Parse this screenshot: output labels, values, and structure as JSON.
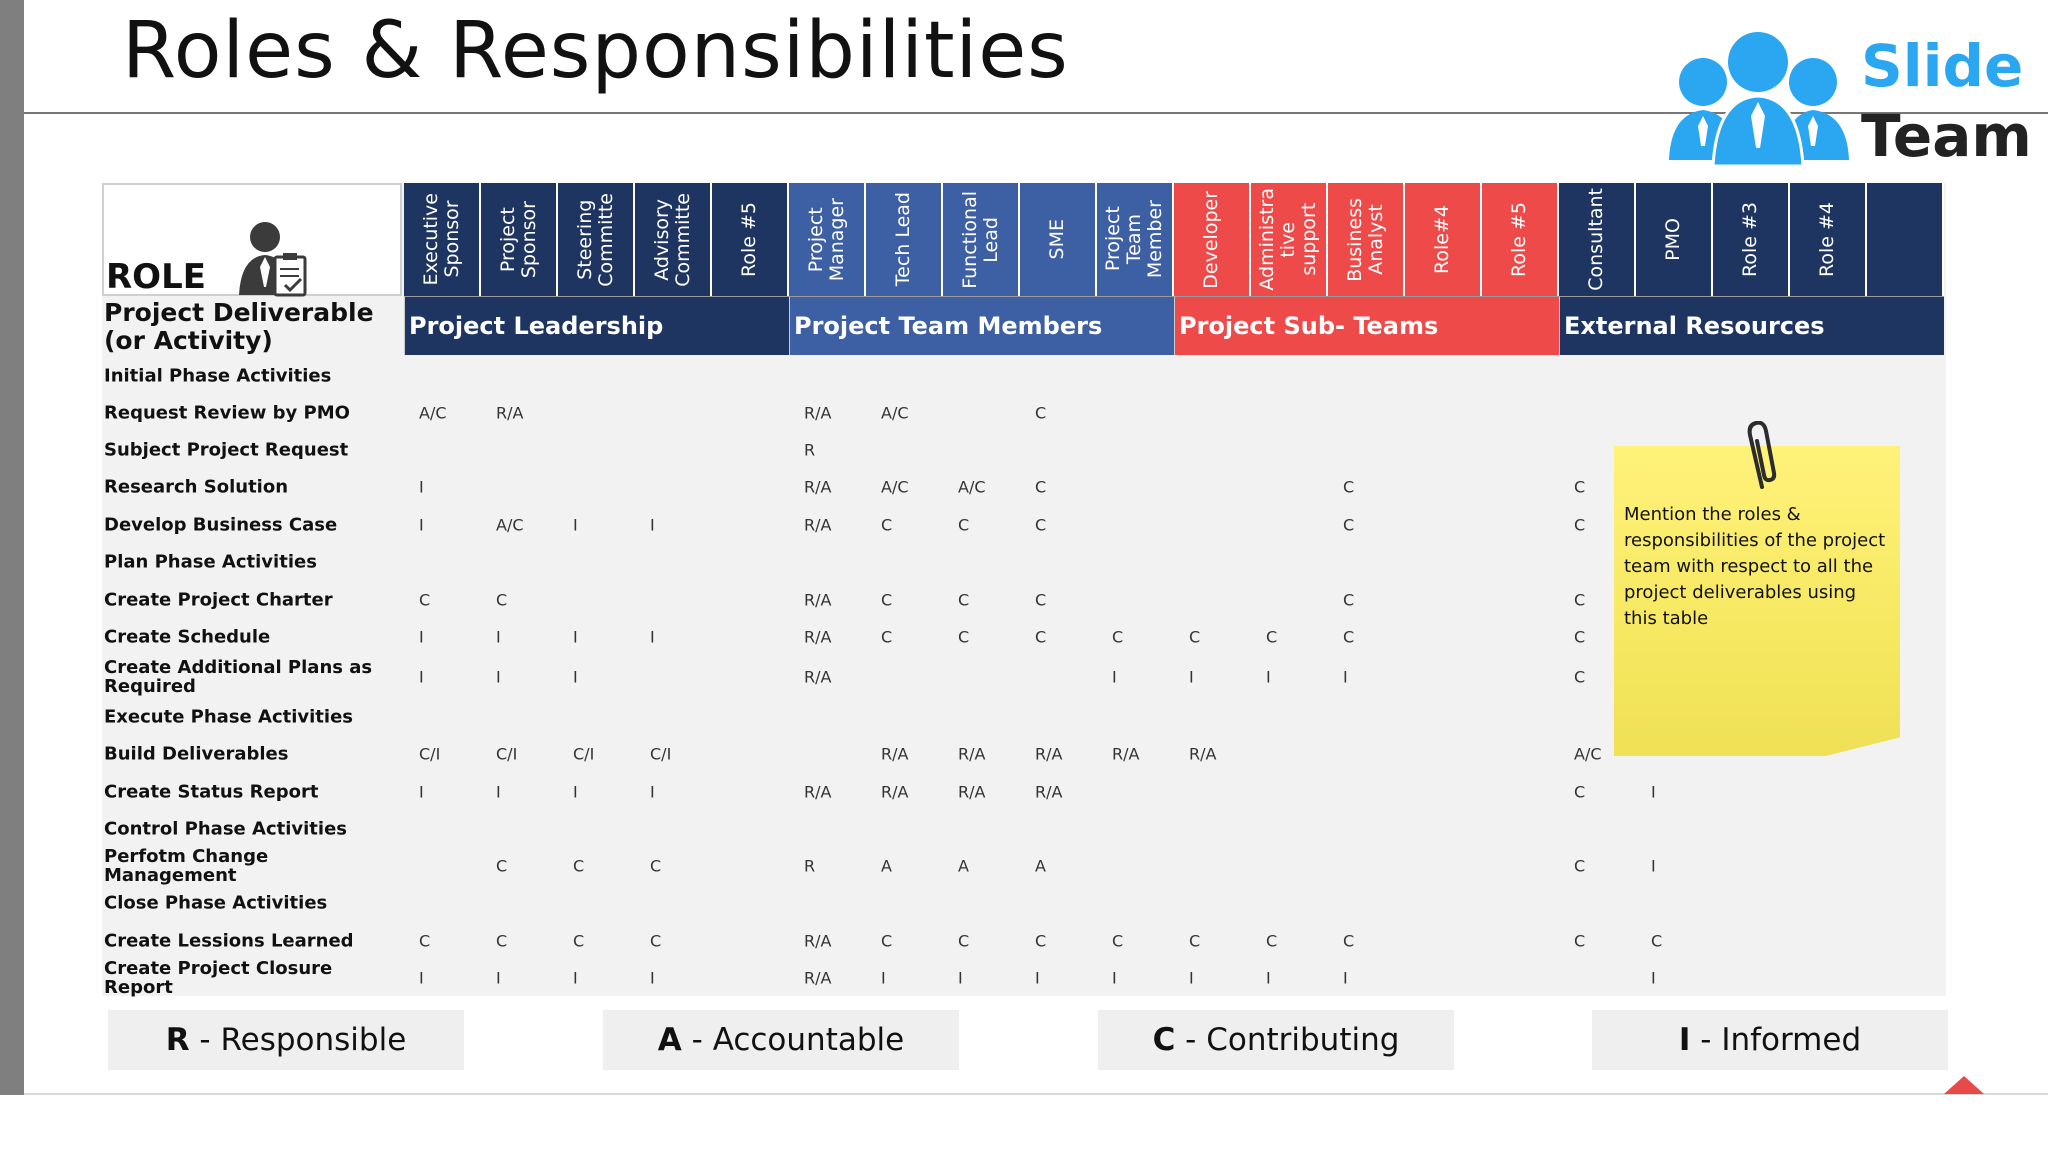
{
  "slide": {
    "title": "Roles & Responsibilities",
    "logo": {
      "line1": "Slide",
      "line2": "Team",
      "icon": "people-group-icon"
    },
    "role_label": "ROLE",
    "role_icon": "businessman-clipboard-icon",
    "deliverable_header": "Project Deliverable (or Activity)"
  },
  "columns": [
    {
      "label": "Executive\nSponsor",
      "color": "#1f3561"
    },
    {
      "label": "Project\nSponsor",
      "color": "#1f3561"
    },
    {
      "label": "Steering\nCommitte",
      "color": "#1f3561"
    },
    {
      "label": "Advisory\nCommitte",
      "color": "#1f3561"
    },
    {
      "label": "Role #5",
      "color": "#1f3561"
    },
    {
      "label": "Project\nManager",
      "color": "#3d5fa3"
    },
    {
      "label": "Tech Lead",
      "color": "#3d5fa3"
    },
    {
      "label": "Functional\nLead",
      "color": "#3d5fa3"
    },
    {
      "label": "SME",
      "color": "#3d5fa3"
    },
    {
      "label": "Project\nTeam\nMember",
      "color": "#3d5fa3"
    },
    {
      "label": "Developer",
      "color": "#ef4a4a"
    },
    {
      "label": "Administra\ntive\nsupport",
      "color": "#ef4a4a"
    },
    {
      "label": "Business\nAnalyst",
      "color": "#ef4a4a"
    },
    {
      "label": "Role#4",
      "color": "#ef4a4a"
    },
    {
      "label": "Role #5",
      "color": "#ef4a4a"
    },
    {
      "label": "Consultant",
      "color": "#1f3561"
    },
    {
      "label": "PMO",
      "color": "#1f3561"
    },
    {
      "label": "Role #3",
      "color": "#1f3561"
    },
    {
      "label": "Role #4",
      "color": "#1f3561"
    },
    {
      "label": "",
      "color": "#1f3561"
    }
  ],
  "groups": [
    {
      "label": "Project Leadership",
      "color": "#1f3561"
    },
    {
      "label": "Project Team Members",
      "color": "#3d5fa3"
    },
    {
      "label": "Project Sub- Teams",
      "color": "#ef4a4a"
    },
    {
      "label": "External Resources",
      "color": "#1f3561"
    }
  ],
  "rows": [
    {
      "label": "Initial Phase Activities",
      "cells": []
    },
    {
      "label": "Request Review by PMO",
      "cells": [
        [
          0,
          "A/C"
        ],
        [
          1,
          "R/A"
        ],
        [
          5,
          "R/A"
        ],
        [
          6,
          "A/C"
        ],
        [
          8,
          "C"
        ]
      ]
    },
    {
      "label": "Subject Project Request",
      "cells": [
        [
          5,
          "R"
        ]
      ]
    },
    {
      "label": "Research Solution",
      "cells": [
        [
          0,
          "I"
        ],
        [
          5,
          "R/A"
        ],
        [
          6,
          "A/C"
        ],
        [
          7,
          "A/C"
        ],
        [
          8,
          "C"
        ],
        [
          12,
          "C"
        ],
        [
          15,
          "C"
        ]
      ]
    },
    {
      "label": "Develop Business Case",
      "cells": [
        [
          0,
          "I"
        ],
        [
          1,
          "A/C"
        ],
        [
          2,
          "I"
        ],
        [
          3,
          "I"
        ],
        [
          5,
          "R/A"
        ],
        [
          6,
          "C"
        ],
        [
          7,
          "C"
        ],
        [
          8,
          "C"
        ],
        [
          12,
          "C"
        ],
        [
          15,
          "C"
        ]
      ]
    },
    {
      "label": "Plan Phase Activities",
      "cells": []
    },
    {
      "label": "Create Project Charter",
      "cells": [
        [
          0,
          "C"
        ],
        [
          1,
          "C"
        ],
        [
          5,
          "R/A"
        ],
        [
          6,
          "C"
        ],
        [
          7,
          "C"
        ],
        [
          8,
          "C"
        ],
        [
          12,
          "C"
        ],
        [
          15,
          "C"
        ]
      ]
    },
    {
      "label": "Create Schedule",
      "cells": [
        [
          0,
          "I"
        ],
        [
          1,
          "I"
        ],
        [
          2,
          "I"
        ],
        [
          3,
          "I"
        ],
        [
          5,
          "R/A"
        ],
        [
          6,
          "C"
        ],
        [
          7,
          "C"
        ],
        [
          8,
          "C"
        ],
        [
          9,
          "C"
        ],
        [
          10,
          "C"
        ],
        [
          11,
          "C"
        ],
        [
          12,
          "C"
        ],
        [
          15,
          "C"
        ]
      ]
    },
    {
      "label": "Create Additional Plans as Required",
      "cells": [
        [
          0,
          "I"
        ],
        [
          1,
          "I"
        ],
        [
          2,
          "I"
        ],
        [
          5,
          "R/A"
        ],
        [
          9,
          "I"
        ],
        [
          10,
          "I"
        ],
        [
          11,
          "I"
        ],
        [
          12,
          "I"
        ],
        [
          15,
          "C"
        ]
      ]
    },
    {
      "label": "Execute Phase Activities",
      "cells": []
    },
    {
      "label": "Build Deliverables",
      "cells": [
        [
          0,
          "C/I"
        ],
        [
          1,
          "C/I"
        ],
        [
          2,
          "C/I"
        ],
        [
          3,
          "C/I"
        ],
        [
          6,
          "R/A"
        ],
        [
          7,
          "R/A"
        ],
        [
          8,
          "R/A"
        ],
        [
          9,
          "R/A"
        ],
        [
          10,
          "R/A"
        ],
        [
          15,
          "A/C"
        ]
      ]
    },
    {
      "label": "Create Status Report",
      "cells": [
        [
          0,
          "I"
        ],
        [
          1,
          "I"
        ],
        [
          2,
          "I"
        ],
        [
          3,
          "I"
        ],
        [
          5,
          "R/A"
        ],
        [
          6,
          "R/A"
        ],
        [
          7,
          "R/A"
        ],
        [
          8,
          "R/A"
        ],
        [
          15,
          "C"
        ],
        [
          16,
          "I"
        ]
      ]
    },
    {
      "label": "Control Phase Activities",
      "cells": []
    },
    {
      "label": "Perfotm Change Management",
      "cells": [
        [
          1,
          "C"
        ],
        [
          2,
          "C"
        ],
        [
          3,
          "C"
        ],
        [
          5,
          "R"
        ],
        [
          6,
          "A"
        ],
        [
          7,
          "A"
        ],
        [
          8,
          "A"
        ],
        [
          15,
          "C"
        ],
        [
          16,
          "I"
        ]
      ]
    },
    {
      "label": "Close Phase Activities",
      "cells": []
    },
    {
      "label": "Create Lessions Learned",
      "cells": [
        [
          0,
          "C"
        ],
        [
          1,
          "C"
        ],
        [
          2,
          "C"
        ],
        [
          3,
          "C"
        ],
        [
          5,
          "R/A"
        ],
        [
          6,
          "C"
        ],
        [
          7,
          "C"
        ],
        [
          8,
          "C"
        ],
        [
          9,
          "C"
        ],
        [
          10,
          "C"
        ],
        [
          11,
          "C"
        ],
        [
          12,
          "C"
        ],
        [
          15,
          "C"
        ],
        [
          16,
          "C"
        ]
      ]
    },
    {
      "label": "Create Project Closure Report",
      "cells": [
        [
          0,
          "I"
        ],
        [
          1,
          "I"
        ],
        [
          2,
          "I"
        ],
        [
          3,
          "I"
        ],
        [
          5,
          "R/A"
        ],
        [
          6,
          "I"
        ],
        [
          7,
          "I"
        ],
        [
          8,
          "I"
        ],
        [
          9,
          "I"
        ],
        [
          10,
          "I"
        ],
        [
          11,
          "I"
        ],
        [
          12,
          "I"
        ],
        [
          16,
          "I"
        ]
      ]
    }
  ],
  "note": {
    "text": "Mention the roles & responsibilities of the project team with respect to all the project deliverables using this table",
    "icon": "paperclip-icon"
  },
  "legend": [
    {
      "key": "R",
      "sep": " - ",
      "text": "Responsible"
    },
    {
      "key": "A",
      "sep": " - ",
      "text": "Accountable"
    },
    {
      "key": "C",
      "sep": " - ",
      "text": "Contributing"
    },
    {
      "key": "I",
      "sep": " - ",
      "text": "Informed"
    }
  ]
}
